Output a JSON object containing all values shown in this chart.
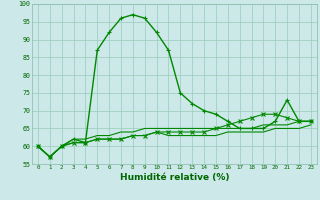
{
  "xlabel": "Humidité relative (%)",
  "background_color": "#cce8e8",
  "grid_color": "#99ccbb",
  "line_color": "#008800",
  "ylim": [
    55,
    100
  ],
  "xlim": [
    -0.5,
    23.5
  ],
  "yticks": [
    55,
    60,
    65,
    70,
    75,
    80,
    85,
    90,
    95,
    100
  ],
  "xticks": [
    0,
    1,
    2,
    3,
    4,
    5,
    6,
    7,
    8,
    9,
    10,
    11,
    12,
    13,
    14,
    15,
    16,
    17,
    18,
    19,
    20,
    21,
    22,
    23
  ],
  "series": [
    {
      "y": [
        60,
        57,
        60,
        62,
        61,
        87,
        92,
        96,
        97,
        96,
        92,
        87,
        75,
        72,
        70,
        69,
        67,
        65,
        65,
        65,
        67,
        73,
        67,
        67
      ],
      "marker": "+",
      "lw": 1.0
    },
    {
      "y": [
        60,
        57,
        60,
        62,
        62,
        63,
        63,
        64,
        64,
        65,
        65,
        65,
        65,
        65,
        65,
        65,
        65,
        65,
        65,
        66,
        66,
        66,
        67,
        67
      ],
      "marker": null,
      "lw": 0.8
    },
    {
      "y": [
        60,
        57,
        60,
        61,
        61,
        62,
        62,
        62,
        63,
        63,
        64,
        63,
        63,
        63,
        63,
        63,
        64,
        64,
        64,
        64,
        65,
        65,
        65,
        66
      ],
      "marker": null,
      "lw": 0.8
    },
    {
      "y": [
        60,
        57,
        60,
        61,
        61,
        62,
        62,
        62,
        63,
        63,
        64,
        64,
        64,
        64,
        64,
        65,
        66,
        67,
        68,
        69,
        69,
        68,
        67,
        67
      ],
      "marker": "x",
      "lw": 0.8
    }
  ]
}
